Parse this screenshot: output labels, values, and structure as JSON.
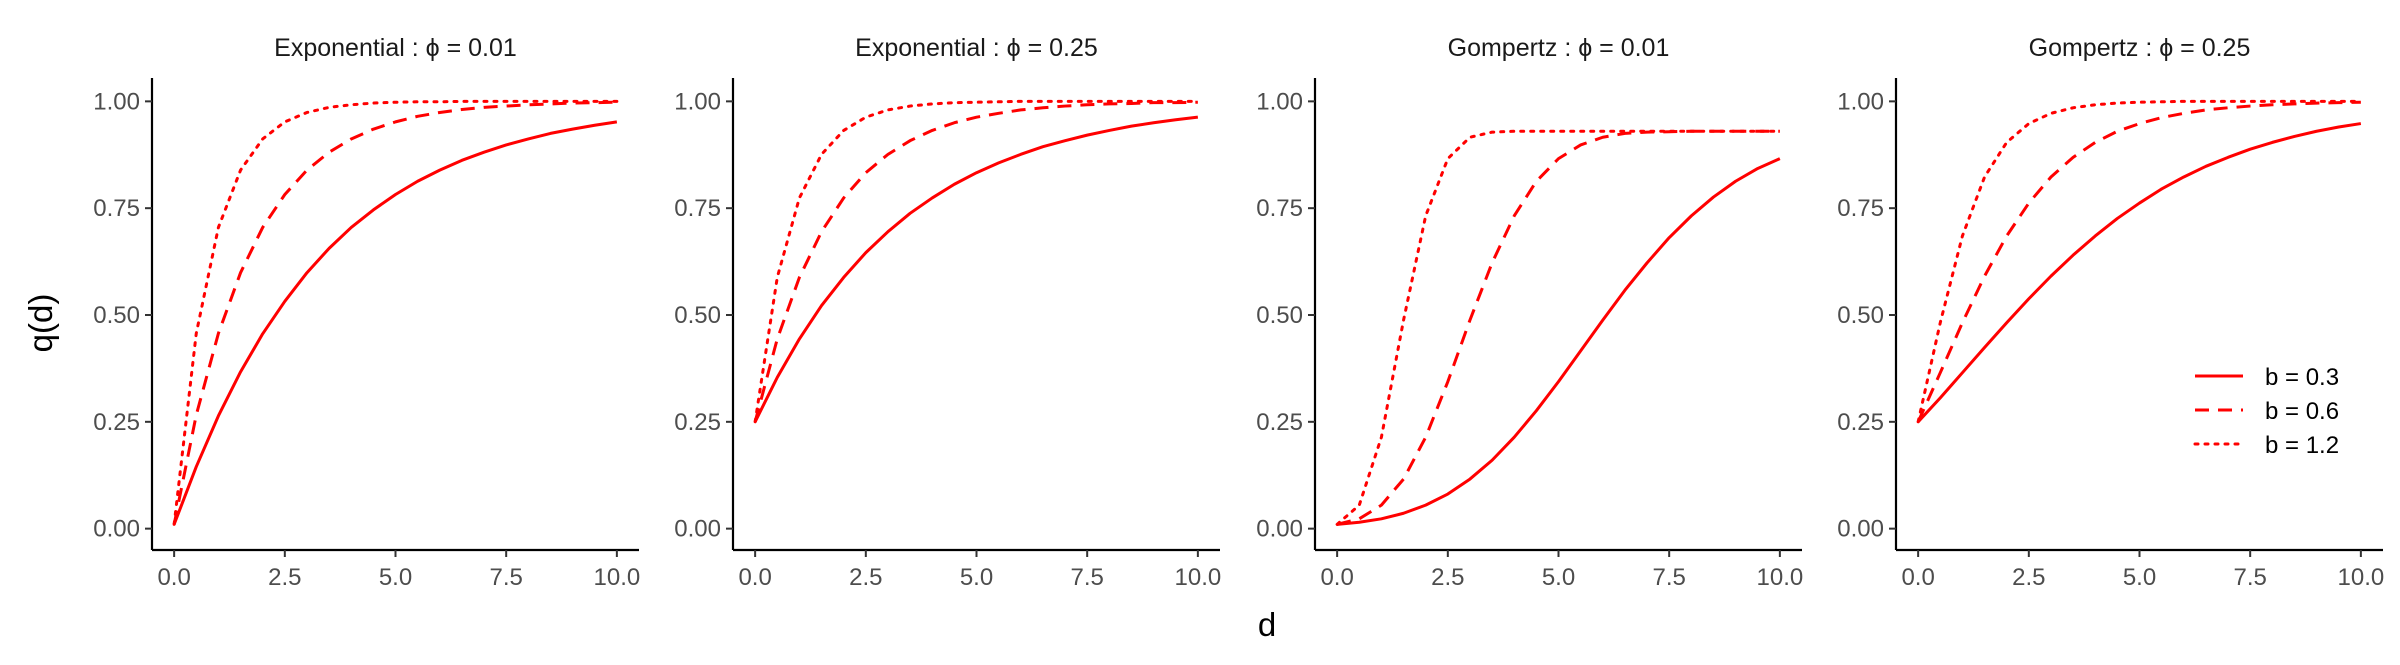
{
  "chart_data": {
    "type": "line",
    "xlabel": "d",
    "ylabel": "q(d)",
    "xlim": [
      -0.5,
      10.5
    ],
    "ylim": [
      -0.05,
      1.05
    ],
    "x_ticks": [
      0,
      2.5,
      5,
      7.5,
      10
    ],
    "x_tick_labels": [
      "0.0",
      "2.5",
      "5.0",
      "7.5",
      "10.0"
    ],
    "y_ticks": [
      0,
      0.25,
      0.5,
      0.75,
      1
    ],
    "y_tick_labels": [
      "0.00",
      "0.25",
      "0.50",
      "0.75",
      "1.00"
    ],
    "grid": false,
    "line_color": "#ff0000",
    "legend": {
      "placement": "inside-right of last panel",
      "entries": [
        {
          "label": "b = 0.3",
          "linetype": "solid"
        },
        {
          "label": "b = 0.6",
          "linetype": "dashed"
        },
        {
          "label": "b = 1.2",
          "linetype": "dotted"
        }
      ]
    },
    "x": [
      0,
      0.5,
      1,
      1.5,
      2,
      2.5,
      3,
      3.5,
      4,
      4.5,
      5,
      5.5,
      6,
      6.5,
      7,
      7.5,
      8,
      8.5,
      9,
      9.5,
      10
    ],
    "panels": [
      {
        "title": "Exponential :  ϕ = 0.01",
        "series": [
          {
            "b": 0.3,
            "linetype": "solid",
            "values": [
              0.01,
              0.145,
              0.264,
              0.367,
              0.456,
              0.532,
              0.599,
              0.656,
              0.705,
              0.746,
              0.782,
              0.813,
              0.839,
              0.862,
              0.881,
              0.898,
              0.912,
              0.925,
              0.935,
              0.944,
              0.952
            ]
          },
          {
            "b": 0.6,
            "linetype": "dashed",
            "values": [
              0.01,
              0.266,
              0.457,
              0.599,
              0.705,
              0.782,
              0.839,
              0.881,
              0.912,
              0.935,
              0.952,
              0.965,
              0.974,
              0.981,
              0.986,
              0.989,
              0.992,
              0.994,
              0.996,
              0.997,
              0.998
            ]
          },
          {
            "b": 1.2,
            "linetype": "dotted",
            "values": [
              0.01,
              0.457,
              0.705,
              0.839,
              0.912,
              0.952,
              0.974,
              0.986,
              0.992,
              0.996,
              0.998,
              0.999,
              0.999,
              1.0,
              1.0,
              1.0,
              1.0,
              1.0,
              1.0,
              1.0,
              1.0
            ]
          }
        ]
      },
      {
        "title": "Exponential :  ϕ = 0.25",
        "series": [
          {
            "b": 0.3,
            "linetype": "solid",
            "values": [
              0.25,
              0.354,
              0.444,
              0.522,
              0.588,
              0.646,
              0.695,
              0.738,
              0.774,
              0.806,
              0.833,
              0.856,
              0.876,
              0.894,
              0.908,
              0.921,
              0.932,
              0.942,
              0.95,
              0.957,
              0.963
            ]
          },
          {
            "b": 0.6,
            "linetype": "dashed",
            "values": [
              0.25,
              0.444,
              0.588,
              0.695,
              0.774,
              0.833,
              0.876,
              0.908,
              0.932,
              0.95,
              0.963,
              0.972,
              0.98,
              0.985,
              0.989,
              0.992,
              0.994,
              0.995,
              0.997,
              0.997,
              0.998
            ]
          },
          {
            "b": 1.2,
            "linetype": "dotted",
            "values": [
              0.25,
              0.588,
              0.774,
              0.876,
              0.932,
              0.963,
              0.98,
              0.989,
              0.994,
              0.997,
              0.998,
              0.999,
              1.0,
              1.0,
              1.0,
              1.0,
              1.0,
              1.0,
              1.0,
              1.0,
              1.0
            ]
          }
        ]
      },
      {
        "title": "Gompertz :  ϕ = 0.01",
        "series": [
          {
            "b": 0.3,
            "linetype": "solid",
            "values": [
              0.01,
              0.015,
              0.023,
              0.036,
              0.055,
              0.081,
              0.116,
              0.16,
              0.214,
              0.276,
              0.344,
              0.416,
              0.488,
              0.558,
              0.622,
              0.681,
              0.732,
              0.776,
              0.813,
              0.843,
              0.866
            ]
          },
          {
            "b": 0.6,
            "linetype": "dashed",
            "values": [
              0.01,
              0.023,
              0.055,
              0.116,
              0.214,
              0.344,
              0.488,
              0.622,
              0.732,
              0.813,
              0.866,
              0.898,
              0.916,
              0.925,
              0.928,
              0.929,
              0.93,
              0.93,
              0.93,
              0.93,
              0.93
            ]
          },
          {
            "b": 1.2,
            "linetype": "dotted",
            "values": [
              0.01,
              0.055,
              0.214,
              0.488,
              0.732,
              0.866,
              0.916,
              0.928,
              0.93,
              0.93,
              0.93,
              0.93,
              0.93,
              0.93,
              0.93,
              0.93,
              0.93,
              0.93,
              0.93,
              0.93,
              0.93
            ]
          }
        ]
      },
      {
        "title": "Gompertz :  ϕ = 0.25",
        "series": [
          {
            "b": 0.3,
            "linetype": "solid",
            "values": [
              0.25,
              0.306,
              0.365,
              0.424,
              0.482,
              0.538,
              0.591,
              0.64,
              0.685,
              0.726,
              0.762,
              0.795,
              0.823,
              0.848,
              0.869,
              0.888,
              0.904,
              0.918,
              0.93,
              0.94,
              0.948
            ]
          },
          {
            "b": 0.6,
            "linetype": "dashed",
            "values": [
              0.25,
              0.365,
              0.482,
              0.591,
              0.685,
              0.762,
              0.823,
              0.869,
              0.904,
              0.93,
              0.948,
              0.962,
              0.972,
              0.98,
              0.985,
              0.989,
              0.992,
              0.994,
              0.996,
              0.997,
              0.998
            ]
          },
          {
            "b": 1.2,
            "linetype": "dotted",
            "values": [
              0.25,
              0.482,
              0.685,
              0.823,
              0.904,
              0.948,
              0.972,
              0.985,
              0.992,
              0.996,
              0.998,
              0.999,
              1.0,
              1.0,
              1.0,
              1.0,
              1.0,
              1.0,
              1.0,
              1.0,
              1.0
            ]
          }
        ]
      }
    ]
  }
}
